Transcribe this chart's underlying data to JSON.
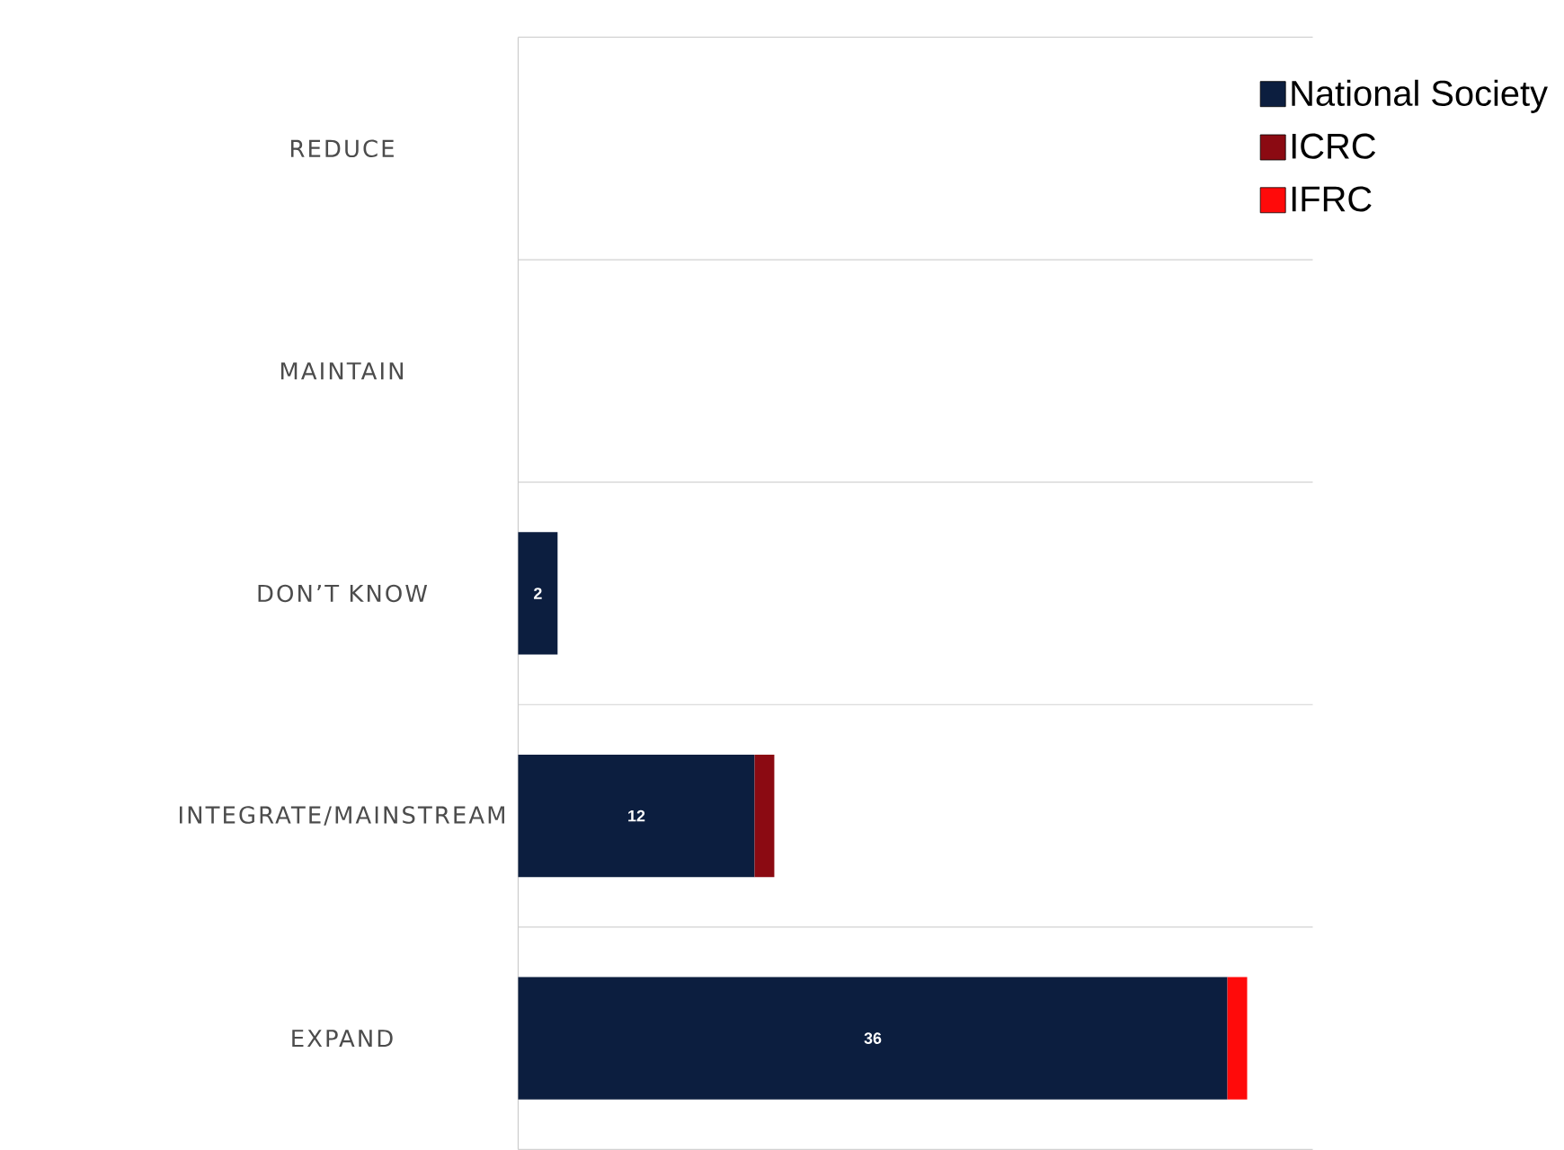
{
  "chart_data": {
    "type": "bar",
    "orientation": "horizontal",
    "stacked": true,
    "categories": [
      "REDUCE",
      "MAINTAIN",
      "DON’T KNOW",
      "INTEGRATE/MAINSTREAM",
      "EXPAND"
    ],
    "series": [
      {
        "name": "National Society",
        "color": "#0c1e3f",
        "values": [
          null,
          null,
          2,
          12,
          36
        ],
        "value_labels": [
          null,
          null,
          "2",
          "12",
          "36"
        ]
      },
      {
        "name": "ICRC",
        "color": "#8b0a12",
        "values": [
          null,
          null,
          null,
          1,
          null
        ]
      },
      {
        "name": "IFRC",
        "color": "#ff0a0a",
        "values": [
          null,
          null,
          null,
          null,
          1
        ]
      }
    ],
    "grid": "y",
    "legend": "top right"
  }
}
